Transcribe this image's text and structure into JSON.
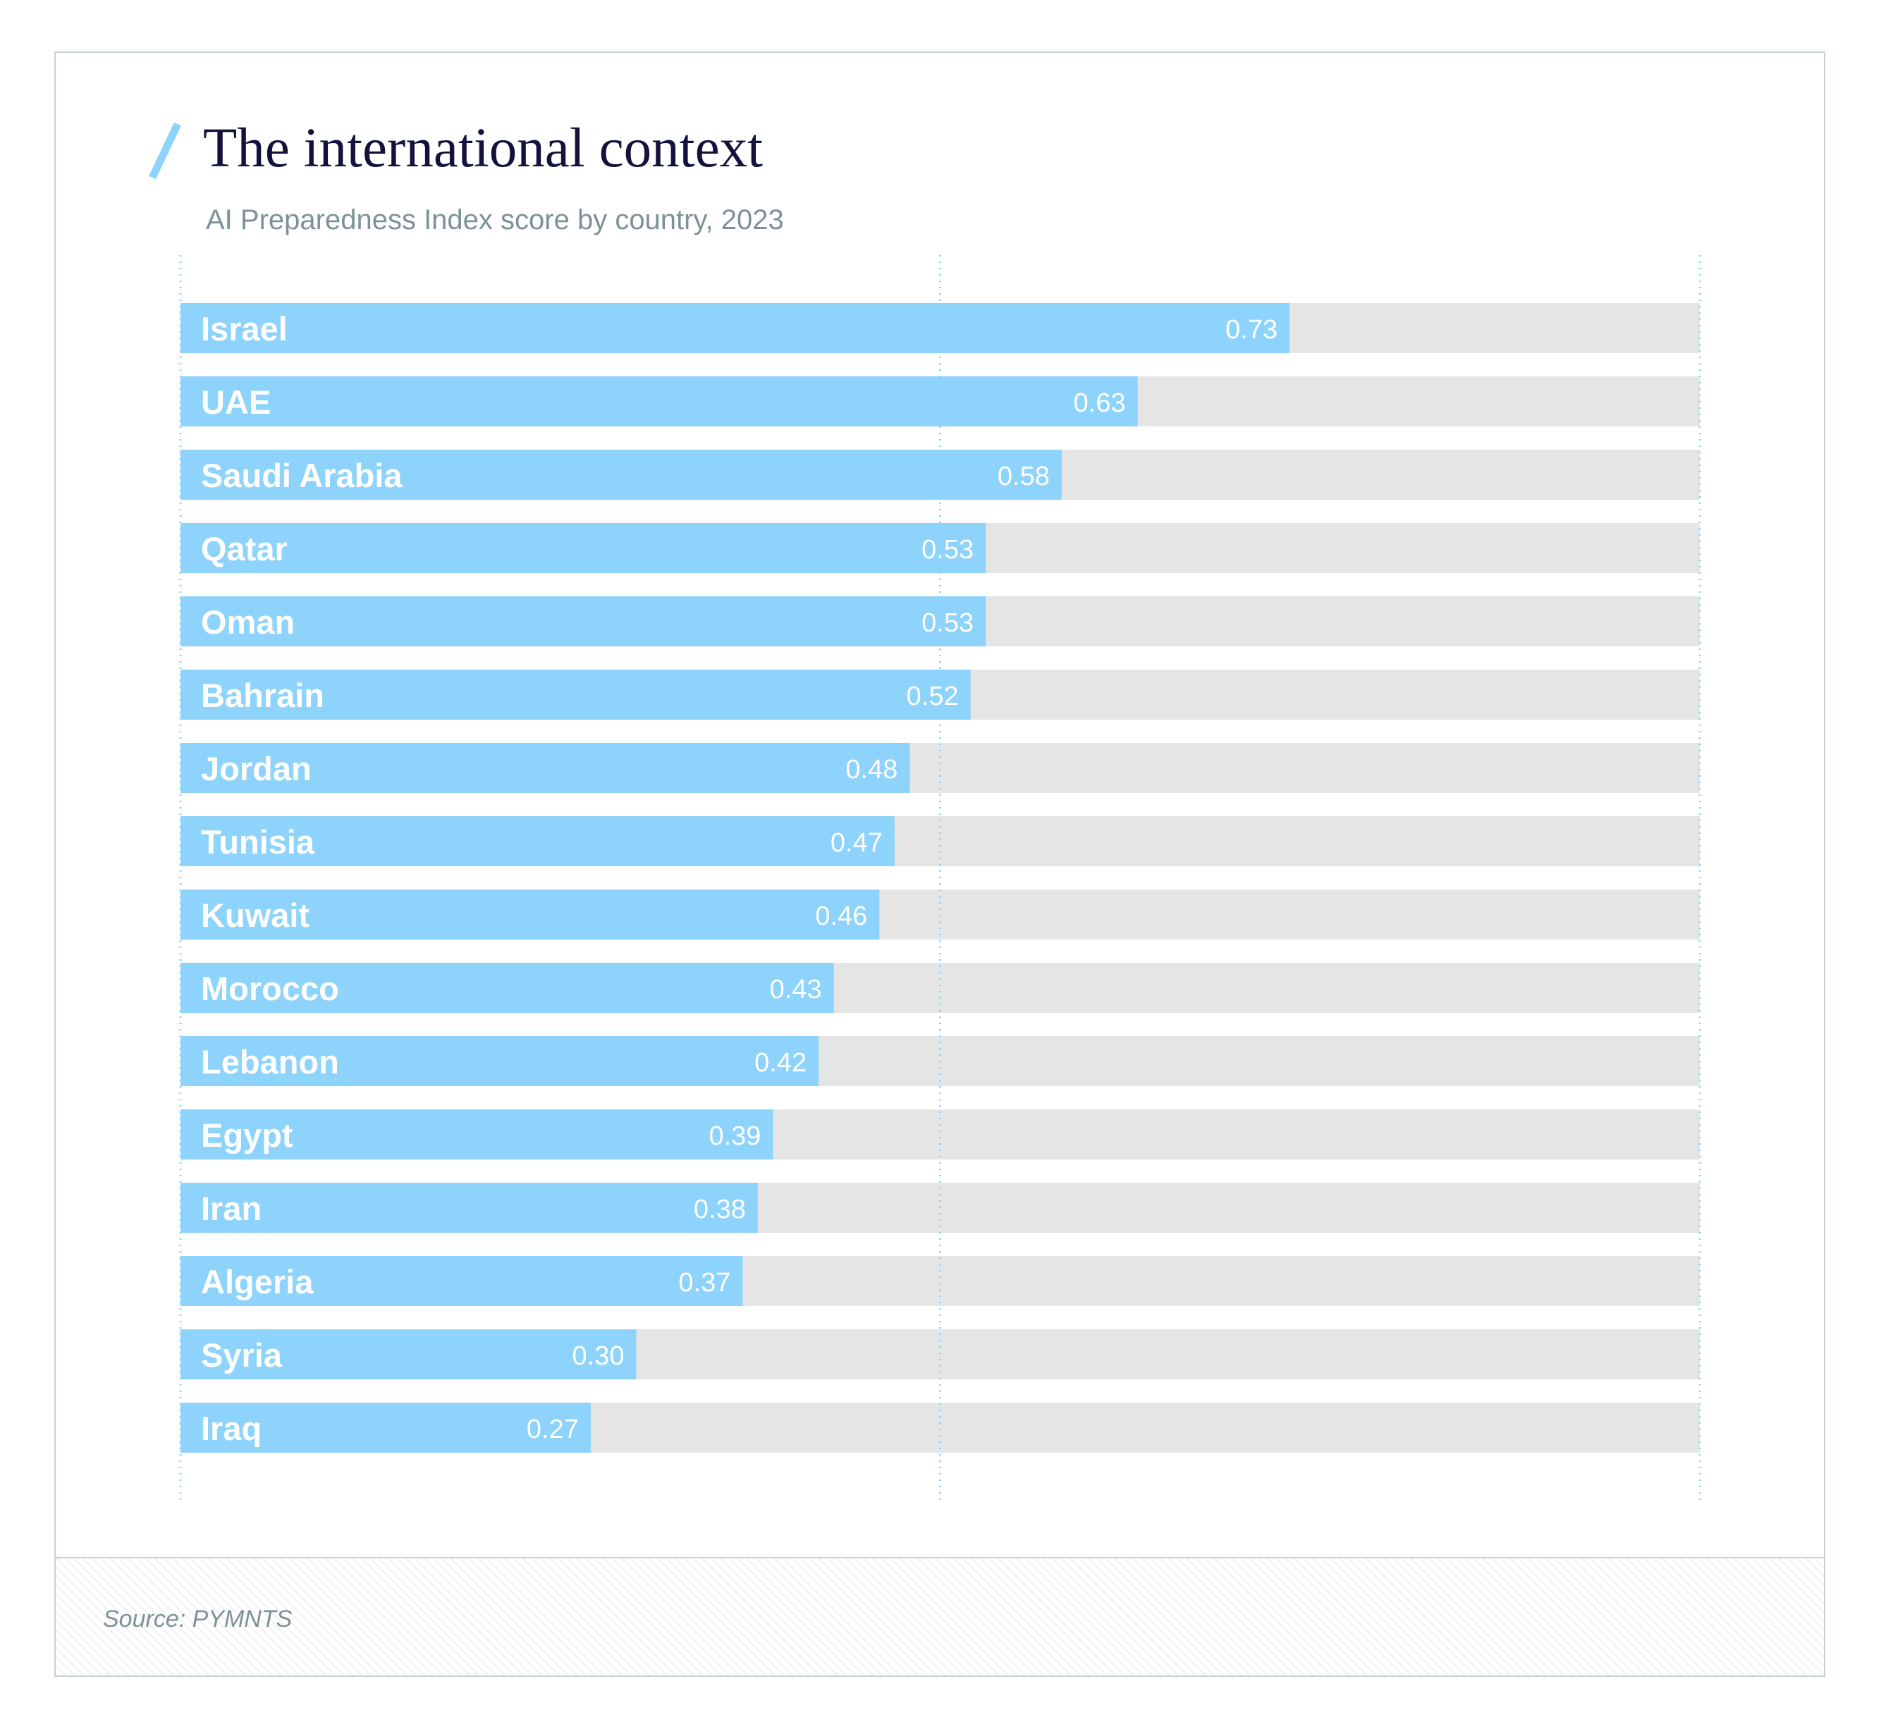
{
  "header": {
    "title": "The international context",
    "subtitle": "AI Preparedness Index score by country, 2023"
  },
  "footer": {
    "source": "Source: PYMNTS"
  },
  "colors": {
    "bar": "#8dd3fb",
    "track": "#e5e5e5",
    "gridline": "#8dd3fb",
    "accent": "#8dd3fb",
    "title": "#12123d",
    "subtitle": "#7d9296"
  },
  "chart_data": {
    "type": "bar",
    "orientation": "horizontal",
    "categories": [
      "Israel",
      "UAE",
      "Saudi Arabia",
      "Qatar",
      "Oman",
      "Bahrain",
      "Jordan",
      "Tunisia",
      "Kuwait",
      "Morocco",
      "Lebanon",
      "Egypt",
      "Iran",
      "Algeria",
      "Syria",
      "Iraq"
    ],
    "values": [
      0.73,
      0.63,
      0.58,
      0.53,
      0.53,
      0.52,
      0.48,
      0.47,
      0.46,
      0.43,
      0.42,
      0.39,
      0.38,
      0.37,
      0.3,
      0.27
    ],
    "value_labels": [
      "0.73",
      "0.63",
      "0.58",
      "0.53",
      "0.53",
      "0.52",
      "0.48",
      "0.47",
      "0.46",
      "0.43",
      "0.42",
      "0.39",
      "0.38",
      "0.37",
      "0.30",
      "0.27"
    ],
    "xlim": [
      0,
      1
    ],
    "gridlines": [
      0,
      0.5,
      1
    ],
    "grid": true,
    "grid_style": "dotted vertical",
    "legend": "none",
    "title": "The international context",
    "subtitle": "AI Preparedness Index score by country, 2023",
    "xlabel": "",
    "ylabel": ""
  }
}
